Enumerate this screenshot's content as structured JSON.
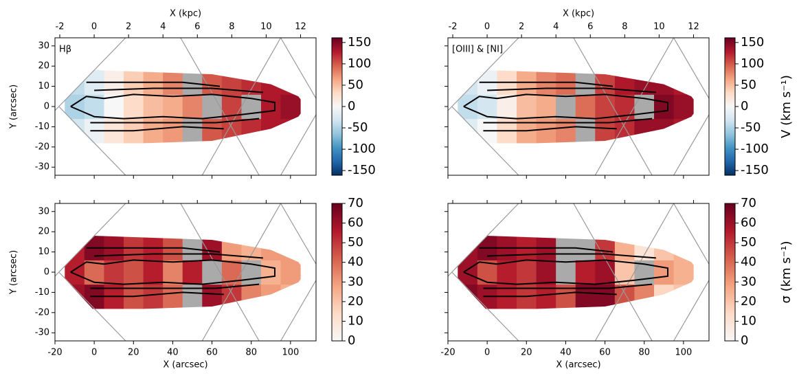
{
  "chart_data": [
    {
      "type": "heatmap",
      "label": "Hβ",
      "x2label": "X (kpc)",
      "ylabel": "Y (arcsec)",
      "show_xticklabels": false,
      "show_x2ticklabels": true,
      "show_yticklabels": true,
      "xlim": [
        -20,
        113
      ],
      "xticks": [
        -20,
        0,
        20,
        40,
        60,
        80,
        100
      ],
      "x2lim": [
        -2.28,
        12.9
      ],
      "x2ticks": [
        -2,
        0,
        2,
        4,
        6,
        8,
        10,
        12
      ],
      "ylim": [
        -34,
        34
      ],
      "yticks": [
        -30,
        -20,
        -10,
        0,
        10,
        20,
        30
      ],
      "x_edges": [
        -15,
        -5,
        5,
        15,
        25,
        35,
        45,
        55,
        65,
        75,
        85,
        95,
        105
      ],
      "y_edges": [
        -18,
        -6,
        6,
        18
      ],
      "z": [
        [
          -30,
          -10,
          20,
          40,
          60,
          70,
          null,
          100,
          110,
          120,
          130,
          130
        ],
        [
          -50,
          -40,
          0,
          30,
          50,
          60,
          80,
          null,
          110,
          null,
          130,
          140
        ],
        [
          -40,
          -20,
          10,
          40,
          60,
          80,
          null,
          100,
          110,
          120,
          130,
          130
        ]
      ],
      "clim": [
        -161,
        161
      ],
      "cticks": [
        -150,
        -100,
        -50,
        0,
        50,
        100,
        150
      ],
      "cmap": [
        "#053061",
        "#2166ac",
        "#4393c3",
        "#92c5de",
        "#d1e5f0",
        "#f7f7f7",
        "#fddbc7",
        "#f4a582",
        "#d6604d",
        "#b2182b",
        "#67001f"
      ],
      "nan_color": "#aaaaaa"
    },
    {
      "type": "heatmap",
      "label": "[OIII] & [NI]",
      "x2label": "X (kpc)",
      "clabel": "V (km s⁻¹)",
      "show_xticklabels": false,
      "show_x2ticklabels": true,
      "show_yticklabels": false,
      "xlim": [
        -20,
        113
      ],
      "xticks": [
        -20,
        0,
        20,
        40,
        60,
        80,
        100
      ],
      "x2lim": [
        -2.28,
        12.9
      ],
      "x2ticks": [
        -2,
        0,
        2,
        4,
        6,
        8,
        10,
        12
      ],
      "ylim": [
        -34,
        34
      ],
      "yticks": [
        -30,
        -20,
        -10,
        0,
        10,
        20,
        30
      ],
      "x_edges": [
        -15,
        -5,
        5,
        15,
        25,
        35,
        45,
        55,
        65,
        75,
        85,
        95,
        105
      ],
      "y_edges": [
        -18,
        -6,
        6,
        18
      ],
      "z": [
        [
          -20,
          0,
          30,
          60,
          70,
          80,
          null,
          110,
          120,
          140,
          140,
          130
        ],
        [
          -40,
          -30,
          10,
          50,
          60,
          null,
          90,
          110,
          120,
          null,
          150,
          140
        ],
        [
          -30,
          -10,
          30,
          60,
          80,
          90,
          null,
          110,
          130,
          140,
          140,
          130
        ]
      ],
      "clim": [
        -161,
        161
      ],
      "cticks": [
        -150,
        -100,
        -50,
        0,
        50,
        100,
        150
      ],
      "cmap": [
        "#053061",
        "#2166ac",
        "#4393c3",
        "#92c5de",
        "#d1e5f0",
        "#f7f7f7",
        "#fddbc7",
        "#f4a582",
        "#d6604d",
        "#b2182b",
        "#67001f"
      ],
      "nan_color": "#aaaaaa"
    },
    {
      "type": "heatmap",
      "xlabel": "X (arcsec)",
      "ylabel": "Y (arcsec)",
      "show_xticklabels": true,
      "show_x2ticklabels": false,
      "show_yticklabels": true,
      "xlim": [
        -20,
        113
      ],
      "xticks": [
        -20,
        0,
        20,
        40,
        60,
        80,
        100
      ],
      "x2lim": [
        -2.28,
        12.9
      ],
      "x2ticks": [
        -2,
        0,
        2,
        4,
        6,
        8,
        10,
        12
      ],
      "ylim": [
        -34,
        34
      ],
      "yticks": [
        -30,
        -20,
        -10,
        0,
        10,
        20,
        30
      ],
      "x_edges": [
        -15,
        -5,
        5,
        15,
        25,
        35,
        45,
        55,
        65,
        75,
        85,
        95,
        105
      ],
      "y_edges": [
        -18,
        -6,
        6,
        18
      ],
      "z": [
        [
          60,
          65,
          55,
          45,
          50,
          40,
          null,
          60,
          50,
          35,
          30,
          25
        ],
        [
          55,
          40,
          50,
          45,
          55,
          35,
          55,
          null,
          40,
          null,
          25,
          30
        ],
        [
          55,
          65,
          60,
          50,
          55,
          45,
          null,
          60,
          30,
          25,
          30,
          30
        ]
      ],
      "clim": [
        0,
        70
      ],
      "cticks": [
        0,
        10,
        20,
        30,
        40,
        50,
        60,
        70
      ],
      "cmap": [
        "#f7f7f7",
        "#fddbc7",
        "#f4a582",
        "#d6604d",
        "#b2182b",
        "#67001f"
      ],
      "nan_color": "#aaaaaa"
    },
    {
      "type": "heatmap",
      "xlabel": "X (arcsec)",
      "clabel": "σ (km s⁻¹)",
      "show_xticklabels": true,
      "show_x2ticklabels": false,
      "show_yticklabels": false,
      "xlim": [
        -20,
        113
      ],
      "xticks": [
        -20,
        0,
        20,
        40,
        60,
        80,
        100
      ],
      "x2lim": [
        -2.28,
        12.9
      ],
      "x2ticks": [
        -2,
        0,
        2,
        4,
        6,
        8,
        10,
        12
      ],
      "ylim": [
        -34,
        34
      ],
      "yticks": [
        -30,
        -20,
        -10,
        0,
        10,
        20,
        30
      ],
      "x_edges": [
        -15,
        -5,
        5,
        15,
        25,
        35,
        45,
        55,
        65,
        75,
        85,
        95,
        105
      ],
      "y_edges": [
        -18,
        -6,
        6,
        18
      ],
      "z": [
        [
          65,
          60,
          55,
          50,
          55,
          45,
          65,
          65,
          45,
          35,
          15,
          20
        ],
        [
          60,
          45,
          55,
          50,
          60,
          null,
          55,
          60,
          20,
          null,
          30,
          25
        ],
        [
          60,
          65,
          60,
          55,
          60,
          null,
          null,
          50,
          25,
          10,
          20,
          25
        ]
      ],
      "clim": [
        0,
        70
      ],
      "cticks": [
        0,
        10,
        20,
        30,
        40,
        50,
        60,
        70
      ],
      "cmap": [
        "#f7f7f7",
        "#fddbc7",
        "#f4a582",
        "#d6604d",
        "#b2182b",
        "#67001f"
      ],
      "nan_color": "#aaaaaa"
    }
  ]
}
